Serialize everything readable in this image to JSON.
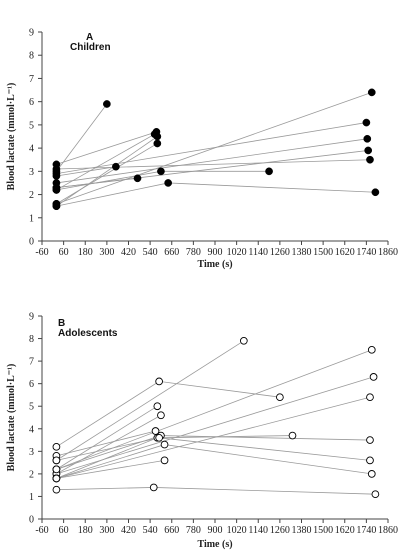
{
  "chart_data": [
    {
      "type": "scatter",
      "panel_letter": "A",
      "panel_title": "Children",
      "xlabel": "Time (s)",
      "ylabel": "Blood lactate (mmol·L⁻¹)",
      "xlim": [
        -60,
        1860
      ],
      "ylim": [
        0,
        9
      ],
      "xticks": [
        -60,
        60,
        180,
        300,
        420,
        540,
        660,
        780,
        900,
        1020,
        1140,
        1260,
        1380,
        1500,
        1620,
        1740,
        1860
      ],
      "yticks": [
        0,
        1,
        2,
        3,
        4,
        5,
        6,
        7,
        8,
        9
      ],
      "marker": "filled-circle",
      "marker_color": "#000000",
      "line_color": "#9a9a9a",
      "series": [
        {
          "x": [
            20,
            1770
          ],
          "y": [
            1.6,
            6.4
          ]
        },
        {
          "x": [
            20,
            300
          ],
          "y": [
            3.0,
            5.9
          ]
        },
        {
          "x": [
            20,
            565
          ],
          "y": [
            2.2,
            4.6
          ]
        },
        {
          "x": [
            20,
            575
          ],
          "y": [
            3.3,
            4.7
          ]
        },
        {
          "x": [
            20,
            1740
          ],
          "y": [
            2.9,
            5.1
          ]
        },
        {
          "x": [
            20,
            580
          ],
          "y": [
            1.5,
            4.5
          ]
        },
        {
          "x": [
            20,
            1745
          ],
          "y": [
            2.5,
            4.4
          ]
        },
        {
          "x": [
            20,
            1750
          ],
          "y": [
            2.3,
            3.9
          ]
        },
        {
          "x": [
            20,
            350
          ],
          "y": [
            2.8,
            3.2
          ]
        },
        {
          "x": [
            20,
            580
          ],
          "y": [
            1.6,
            4.2
          ]
        },
        {
          "x": [
            20,
            470
          ],
          "y": [
            2.3,
            2.7
          ]
        },
        {
          "x": [
            20,
            1760
          ],
          "y": [
            3.1,
            3.5
          ]
        },
        {
          "x": [
            20,
            600,
            1200
          ],
          "y": [
            2.2,
            3.0,
            3.0
          ]
        },
        {
          "x": [
            20,
            640,
            1790
          ],
          "y": [
            1.5,
            2.5,
            2.1
          ]
        }
      ]
    },
    {
      "type": "scatter",
      "panel_letter": "B",
      "panel_title": "Adolescents",
      "xlabel": "Time (s)",
      "ylabel": "Blood lactate (mmol·L⁻¹)",
      "xlim": [
        -60,
        1860
      ],
      "ylim": [
        0,
        9
      ],
      "xticks": [
        -60,
        60,
        180,
        300,
        420,
        540,
        660,
        780,
        900,
        1020,
        1140,
        1260,
        1380,
        1500,
        1620,
        1740,
        1860
      ],
      "yticks": [
        0,
        1,
        2,
        3,
        4,
        5,
        6,
        7,
        8,
        9
      ],
      "marker": "open-circle",
      "marker_color": "#000000",
      "line_color": "#9a9a9a",
      "series": [
        {
          "x": [
            20,
            1060
          ],
          "y": [
            2.6,
            7.9
          ]
        },
        {
          "x": [
            20,
            1770
          ],
          "y": [
            2.2,
            7.5
          ]
        },
        {
          "x": [
            20,
            1780
          ],
          "y": [
            2.0,
            6.3
          ]
        },
        {
          "x": [
            20,
            1760
          ],
          "y": [
            1.8,
            5.4
          ]
        },
        {
          "x": [
            20,
            590,
            1260
          ],
          "y": [
            3.2,
            6.1,
            5.4
          ]
        },
        {
          "x": [
            20,
            580
          ],
          "y": [
            2.2,
            5.0
          ]
        },
        {
          "x": [
            20,
            600
          ],
          "y": [
            2.0,
            4.6
          ]
        },
        {
          "x": [
            20,
            570
          ],
          "y": [
            2.8,
            3.9
          ]
        },
        {
          "x": [
            20,
            580,
            1330
          ],
          "y": [
            1.8,
            3.6,
            3.7
          ]
        },
        {
          "x": [
            20,
            600,
            1760
          ],
          "y": [
            2.2,
            3.7,
            3.5
          ]
        },
        {
          "x": [
            20,
            590,
            1760
          ],
          "y": [
            2.6,
            3.6,
            2.6
          ]
        },
        {
          "x": [
            20,
            620,
            1770
          ],
          "y": [
            1.8,
            3.3,
            2.0
          ]
        },
        {
          "x": [
            20,
            620
          ],
          "y": [
            1.8,
            2.6
          ]
        },
        {
          "x": [
            20,
            560,
            1790
          ],
          "y": [
            1.3,
            1.4,
            1.1
          ]
        }
      ]
    }
  ]
}
